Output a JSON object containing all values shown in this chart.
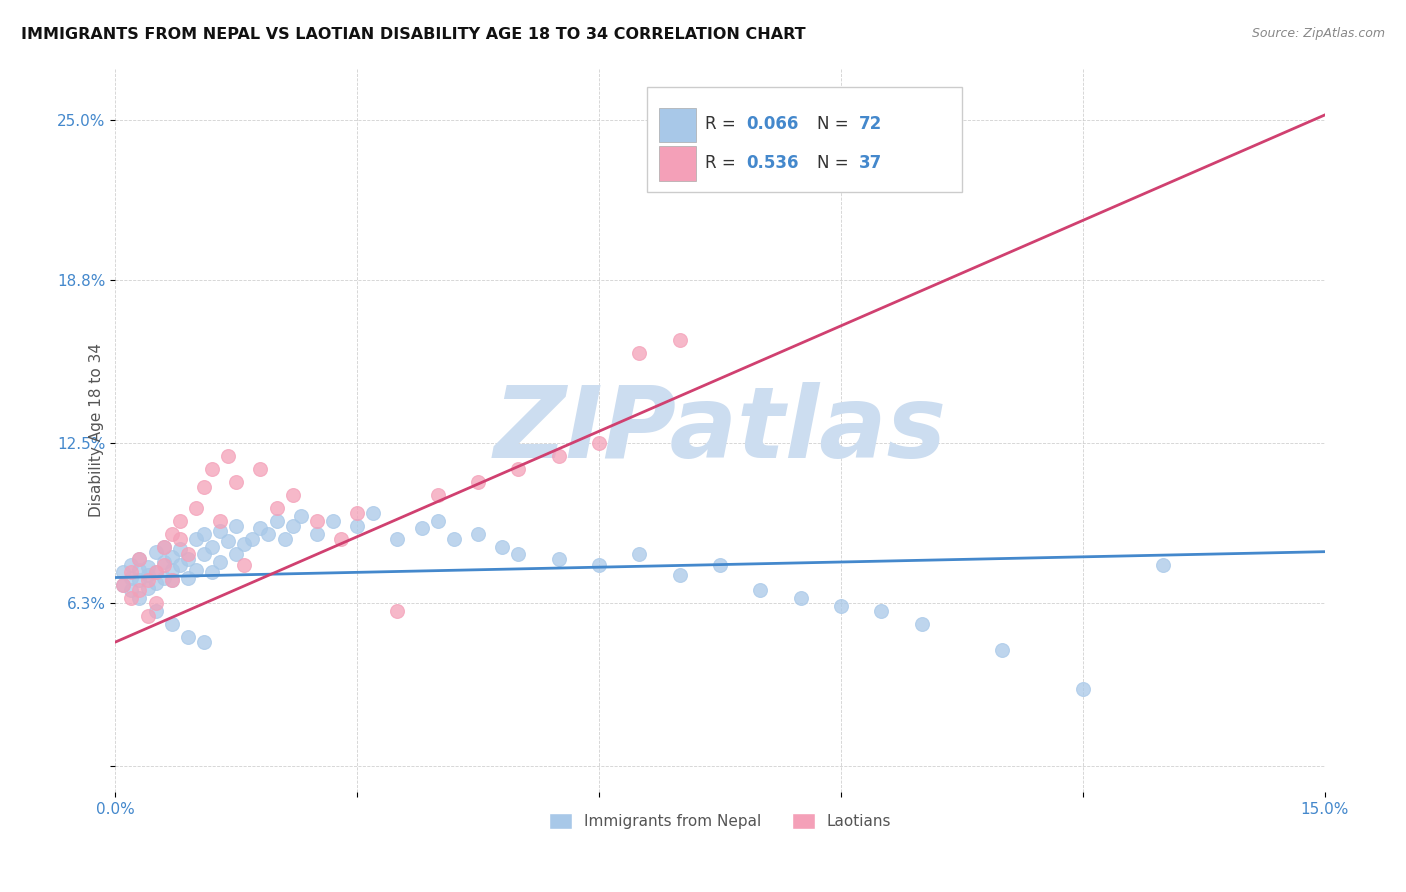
{
  "title": "IMMIGRANTS FROM NEPAL VS LAOTIAN DISABILITY AGE 18 TO 34 CORRELATION CHART",
  "source": "Source: ZipAtlas.com",
  "ylabel": "Disability Age 18 to 34",
  "xlim": [
    0.0,
    0.15
  ],
  "ylim": [
    -0.01,
    0.27
  ],
  "nepal_color": "#a8c8e8",
  "laotian_color": "#f4a0b8",
  "nepal_line_color": "#4488cc",
  "laotian_line_color": "#d04070",
  "watermark": "ZIPatlas",
  "watermark_color": "#ccddf0",
  "title_fontsize": 11.5,
  "label_fontsize": 11,
  "tick_fontsize": 11,
  "nepal_line_y0": 0.073,
  "nepal_line_y1": 0.083,
  "laotian_line_y0": 0.048,
  "laotian_line_y1": 0.252,
  "nepal_x": [
    0.001,
    0.001,
    0.002,
    0.002,
    0.002,
    0.003,
    0.003,
    0.003,
    0.003,
    0.004,
    0.004,
    0.004,
    0.005,
    0.005,
    0.005,
    0.006,
    0.006,
    0.006,
    0.007,
    0.007,
    0.007,
    0.008,
    0.008,
    0.009,
    0.009,
    0.01,
    0.01,
    0.011,
    0.011,
    0.012,
    0.012,
    0.013,
    0.013,
    0.014,
    0.015,
    0.015,
    0.016,
    0.017,
    0.018,
    0.019,
    0.02,
    0.021,
    0.022,
    0.023,
    0.025,
    0.027,
    0.03,
    0.032,
    0.035,
    0.038,
    0.04,
    0.042,
    0.045,
    0.048,
    0.05,
    0.055,
    0.06,
    0.065,
    0.07,
    0.075,
    0.08,
    0.085,
    0.09,
    0.095,
    0.1,
    0.11,
    0.12,
    0.005,
    0.007,
    0.009,
    0.011,
    0.13
  ],
  "nepal_y": [
    0.075,
    0.07,
    0.073,
    0.068,
    0.078,
    0.072,
    0.076,
    0.08,
    0.065,
    0.074,
    0.069,
    0.077,
    0.071,
    0.075,
    0.083,
    0.073,
    0.079,
    0.085,
    0.072,
    0.076,
    0.081,
    0.078,
    0.084,
    0.073,
    0.08,
    0.076,
    0.088,
    0.082,
    0.09,
    0.075,
    0.085,
    0.079,
    0.091,
    0.087,
    0.082,
    0.093,
    0.086,
    0.088,
    0.092,
    0.09,
    0.095,
    0.088,
    0.093,
    0.097,
    0.09,
    0.095,
    0.093,
    0.098,
    0.088,
    0.092,
    0.095,
    0.088,
    0.09,
    0.085,
    0.082,
    0.08,
    0.078,
    0.082,
    0.074,
    0.078,
    0.068,
    0.065,
    0.062,
    0.06,
    0.055,
    0.045,
    0.03,
    0.06,
    0.055,
    0.05,
    0.048,
    0.078
  ],
  "laotian_x": [
    0.001,
    0.002,
    0.002,
    0.003,
    0.003,
    0.004,
    0.004,
    0.005,
    0.005,
    0.006,
    0.006,
    0.007,
    0.007,
    0.008,
    0.008,
    0.009,
    0.01,
    0.011,
    0.012,
    0.013,
    0.014,
    0.015,
    0.016,
    0.018,
    0.02,
    0.022,
    0.025,
    0.028,
    0.03,
    0.035,
    0.04,
    0.045,
    0.05,
    0.055,
    0.06,
    0.065,
    0.07
  ],
  "laotian_y": [
    0.07,
    0.065,
    0.075,
    0.068,
    0.08,
    0.058,
    0.072,
    0.075,
    0.063,
    0.085,
    0.078,
    0.09,
    0.072,
    0.088,
    0.095,
    0.082,
    0.1,
    0.108,
    0.115,
    0.095,
    0.12,
    0.11,
    0.078,
    0.115,
    0.1,
    0.105,
    0.095,
    0.088,
    0.098,
    0.06,
    0.105,
    0.11,
    0.115,
    0.12,
    0.125,
    0.16,
    0.165
  ]
}
